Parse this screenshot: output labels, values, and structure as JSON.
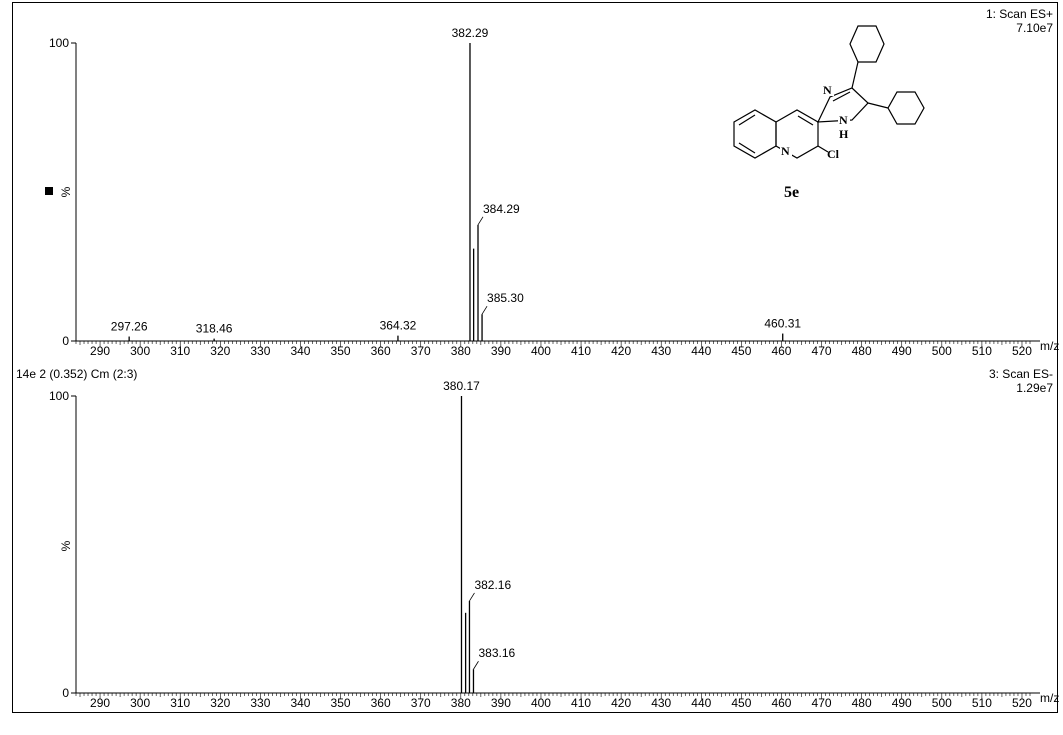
{
  "chart_data": [
    {
      "type": "bar",
      "scan": "1: Scan ES+",
      "intensity": "7.10e7",
      "ylabel": "%",
      "xlabel": "m/z",
      "xlim": [
        284,
        522
      ],
      "ylim": [
        0,
        100
      ],
      "x_ticks": [
        290,
        300,
        310,
        320,
        330,
        340,
        350,
        360,
        370,
        380,
        390,
        400,
        410,
        420,
        430,
        440,
        450,
        460,
        470,
        480,
        490,
        500,
        510,
        520
      ],
      "y_tick_labels": [
        "0",
        "100"
      ],
      "peaks": [
        {
          "mz": 297.26,
          "intensity": 1.5,
          "label": "297.26"
        },
        {
          "mz": 318.46,
          "intensity": 0.8,
          "label": "318.46"
        },
        {
          "mz": 364.32,
          "intensity": 1.8,
          "label": "364.32"
        },
        {
          "mz": 382.29,
          "intensity": 100,
          "label": "382.29"
        },
        {
          "mz": 383.2,
          "intensity": 31,
          "label": ""
        },
        {
          "mz": 384.29,
          "intensity": 39,
          "label": "384.29"
        },
        {
          "mz": 385.3,
          "intensity": 9,
          "label": "385.30"
        },
        {
          "mz": 460.31,
          "intensity": 2.5,
          "label": "460.31"
        }
      ]
    },
    {
      "type": "bar",
      "header": "14e 2 (0.352) Cm (2:3)",
      "scan": "3: Scan ES-",
      "intensity": "1.29e7",
      "ylabel": "%",
      "xlabel": "m/z",
      "xlim": [
        284,
        522
      ],
      "ylim": [
        0,
        100
      ],
      "x_ticks": [
        290,
        300,
        310,
        320,
        330,
        340,
        350,
        360,
        370,
        380,
        390,
        400,
        410,
        420,
        430,
        440,
        450,
        460,
        470,
        480,
        490,
        500,
        510,
        520
      ],
      "y_tick_labels": [
        "0",
        "100"
      ],
      "peaks": [
        {
          "mz": 380.17,
          "intensity": 100,
          "label": "380.17"
        },
        {
          "mz": 381.2,
          "intensity": 27,
          "label": ""
        },
        {
          "mz": 382.16,
          "intensity": 31,
          "label": "382.16"
        },
        {
          "mz": 383.16,
          "intensity": 8,
          "label": "383.16"
        }
      ]
    }
  ],
  "structure": {
    "compound_label": "5e",
    "atom_labels": [
      "N",
      "N",
      "H",
      "N",
      "Cl"
    ]
  }
}
